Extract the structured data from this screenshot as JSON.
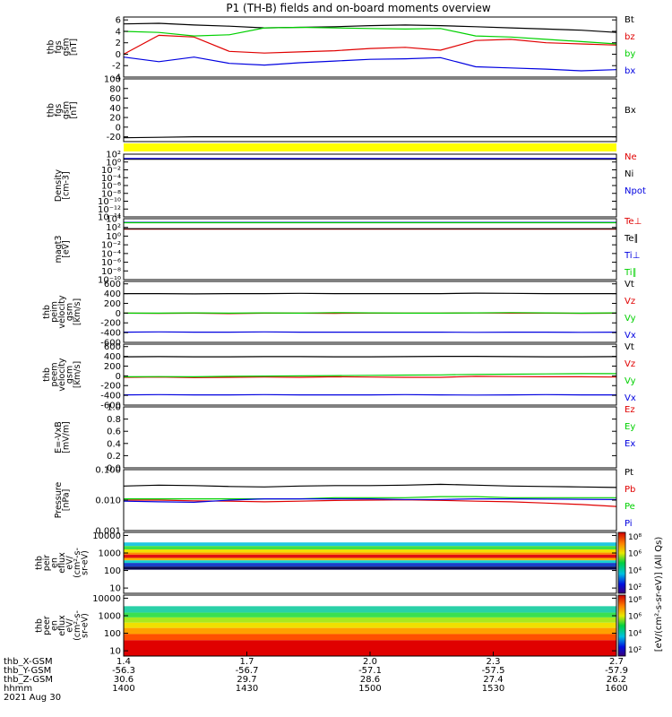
{
  "title": "P1 (TH-B) fields and on-board moments overview",
  "colors": {
    "black": "#000000",
    "red": "#e00000",
    "green": "#00d000",
    "blue": "#0000e0",
    "yellow": "#ffff00",
    "darkred": "#8b0000"
  },
  "chart_data": [
    {
      "type": "line",
      "id": "fgs-bgsm",
      "ylabel": [
        "thb",
        "fgs",
        "gsm",
        "[nT]"
      ],
      "ylim": [
        -4,
        6.5
      ],
      "yticks": [
        -4,
        -2,
        0,
        2,
        4,
        6
      ],
      "series": [
        {
          "name": "Bt",
          "color": "black",
          "values": [
            5.3,
            5.4,
            5.1,
            4.9,
            4.6,
            4.7,
            4.8,
            5.0,
            5.1,
            5.0,
            4.8,
            4.6,
            4.4,
            4.2,
            3.8
          ]
        },
        {
          "name": "bz",
          "color": "red",
          "values": [
            0.0,
            3.3,
            3.0,
            0.5,
            0.2,
            0.4,
            0.6,
            1.0,
            1.2,
            0.7,
            2.4,
            2.6,
            2.0,
            1.8,
            1.6
          ]
        },
        {
          "name": "by",
          "color": "green",
          "values": [
            4.0,
            3.8,
            3.2,
            3.4,
            4.6,
            4.7,
            4.6,
            4.5,
            4.4,
            4.5,
            3.2,
            3.0,
            2.6,
            2.2,
            1.8
          ]
        },
        {
          "name": "bx",
          "color": "blue",
          "values": [
            -0.5,
            -1.3,
            -0.5,
            -1.6,
            -1.9,
            -1.5,
            -1.2,
            -0.9,
            -0.8,
            -0.6,
            -2.2,
            -2.4,
            -2.6,
            -2.9,
            -2.7
          ]
        }
      ]
    },
    {
      "type": "line",
      "id": "fgs-bx",
      "ylabel": [
        "thb",
        "fgs",
        "gsm",
        "[nT]"
      ],
      "ylim": [
        -30,
        100
      ],
      "yticks": [
        -20,
        0,
        20,
        40,
        60,
        80,
        100
      ],
      "series": [
        {
          "name": "Bx",
          "color": "black",
          "values": [
            -22,
            -21,
            -20,
            -20,
            -20,
            -20,
            -20,
            -20,
            -20,
            -20,
            -20,
            -20,
            -20,
            -20,
            -20
          ]
        }
      ]
    },
    {
      "type": "line",
      "id": "density",
      "log": true,
      "ylabel": [
        "Density",
        "[cm-3]"
      ],
      "ylim": [
        1e-14,
        100
      ],
      "yticks": [
        100,
        1,
        0.01,
        0.0001,
        1e-06,
        1e-08,
        1e-10,
        1e-12,
        1e-14
      ],
      "ytick_labels": [
        "10²",
        "10⁰",
        "10⁻²",
        "10⁻⁴",
        "10⁻⁶",
        "10⁻⁸",
        "10⁻¹⁰",
        "10⁻¹²",
        "10⁻¹⁴"
      ],
      "series": [
        {
          "name": "Ne",
          "color": "red",
          "values": [
            6,
            6,
            6,
            6,
            6,
            6,
            6,
            6,
            6,
            6,
            6,
            6,
            6,
            6,
            6
          ]
        },
        {
          "name": "Ni",
          "color": "black",
          "values": [
            5,
            5,
            5,
            5,
            5,
            5,
            5,
            5,
            5,
            5,
            5,
            5,
            5,
            5,
            5
          ]
        },
        {
          "name": "Npot",
          "color": "blue",
          "values": [
            8,
            8,
            8,
            8,
            8,
            8,
            8,
            8,
            8,
            8,
            8,
            8,
            8,
            8,
            8
          ]
        }
      ]
    },
    {
      "type": "line",
      "id": "temperature",
      "log": true,
      "ylabel": [
        "magt3",
        "[eV]"
      ],
      "ylim": [
        1e-10,
        10000
      ],
      "yticks": [
        10000,
        100,
        1,
        0.01,
        0.0001,
        1e-06,
        1e-08,
        1e-10
      ],
      "ytick_labels": [
        "10⁴",
        "10²",
        "10⁰",
        "10⁻²",
        "10⁻⁴",
        "10⁻⁶",
        "10⁻⁸",
        "10⁻¹⁰"
      ],
      "series": [
        {
          "name": "Te⊥",
          "color": "red",
          "values": [
            40,
            40,
            40,
            40,
            40,
            40,
            40,
            40,
            40,
            40,
            40,
            40,
            40,
            40,
            40
          ]
        },
        {
          "name": "Te∥",
          "color": "black",
          "values": [
            50,
            50,
            50,
            50,
            50,
            50,
            50,
            50,
            50,
            50,
            50,
            50,
            50,
            50,
            50
          ]
        },
        {
          "name": "Ti⊥",
          "color": "blue",
          "values": [
            1400,
            1400,
            1400,
            1400,
            1400,
            1400,
            1400,
            1400,
            1400,
            1400,
            1400,
            1400,
            1400,
            1400,
            1400
          ]
        },
        {
          "name": "Ti∥",
          "color": "green",
          "values": [
            1200,
            1200,
            1200,
            1200,
            1200,
            1200,
            1200,
            1200,
            1200,
            1200,
            1200,
            1200,
            1200,
            1200,
            1200
          ]
        }
      ]
    },
    {
      "type": "line",
      "id": "peim-velocity",
      "ylabel": [
        "thb",
        "peim",
        "velocity",
        "gsm",
        "[km/s]"
      ],
      "ylim": [
        -600,
        650
      ],
      "yticks": [
        -600,
        -400,
        -200,
        0,
        200,
        400,
        600
      ],
      "series": [
        {
          "name": "Vt",
          "color": "black",
          "values": [
            400,
            400,
            395,
            400,
            400,
            405,
            400,
            400,
            400,
            400,
            410,
            405,
            400,
            400,
            400
          ]
        },
        {
          "name": "Vz",
          "color": "red",
          "values": [
            0,
            -5,
            0,
            -10,
            0,
            0,
            -5,
            0,
            0,
            0,
            5,
            0,
            0,
            -5,
            0
          ]
        },
        {
          "name": "Vy",
          "color": "green",
          "values": [
            0,
            0,
            5,
            0,
            5,
            0,
            10,
            5,
            0,
            0,
            5,
            10,
            5,
            0,
            5
          ]
        },
        {
          "name": "Vx",
          "color": "blue",
          "values": [
            -390,
            -385,
            -390,
            -390,
            -385,
            -390,
            -390,
            -390,
            -390,
            -390,
            -395,
            -390,
            -390,
            -395,
            -390
          ]
        }
      ]
    },
    {
      "type": "line",
      "id": "peem-velocity",
      "ylabel": [
        "thb",
        "peem",
        "velocity",
        "gsm",
        "[km/s]"
      ],
      "ylim": [
        -600,
        650
      ],
      "yticks": [
        -600,
        -400,
        -200,
        0,
        200,
        400,
        600
      ],
      "series": [
        {
          "name": "Vt",
          "color": "black",
          "values": [
            390,
            395,
            390,
            390,
            395,
            395,
            390,
            390,
            395,
            400,
            400,
            395,
            390,
            390,
            395
          ]
        },
        {
          "name": "Vz",
          "color": "red",
          "values": [
            -30,
            -25,
            -35,
            -30,
            -25,
            -30,
            -20,
            -25,
            -30,
            -30,
            -10,
            -15,
            -20,
            -20,
            -25
          ]
        },
        {
          "name": "Vy",
          "color": "green",
          "values": [
            -20,
            -15,
            -20,
            -10,
            -5,
            0,
            5,
            10,
            15,
            20,
            30,
            35,
            40,
            45,
            45
          ]
        },
        {
          "name": "Vx",
          "color": "blue",
          "values": [
            -390,
            -385,
            -390,
            -390,
            -385,
            -390,
            -390,
            -390,
            -385,
            -390,
            -395,
            -390,
            -385,
            -390,
            -390
          ]
        }
      ]
    },
    {
      "type": "line",
      "id": "efield",
      "ylabel": [
        "E=-VxB",
        "[mV/m]"
      ],
      "ylim": [
        0,
        1.0
      ],
      "yticks": [
        0,
        0.2,
        0.4,
        0.6,
        0.8,
        1.0
      ],
      "ytick_labels": [
        "0.0",
        "0.2",
        "0.4",
        "0.6",
        "0.8",
        "1.0"
      ],
      "series": [
        {
          "name": "Ez",
          "color": "red",
          "values": []
        },
        {
          "name": "Ey",
          "color": "green",
          "values": []
        },
        {
          "name": "Ex",
          "color": "blue",
          "values": []
        }
      ]
    },
    {
      "type": "line",
      "id": "pressure",
      "log": true,
      "ylabel": [
        "Pressure",
        "[nPa]"
      ],
      "ylim": [
        0.001,
        0.1
      ],
      "yticks": [
        0.1,
        0.01,
        0.001
      ],
      "ytick_labels": [
        "0.100",
        "0.010",
        "0.001"
      ],
      "series": [
        {
          "name": "Pt",
          "color": "black",
          "values": [
            0.029,
            0.031,
            0.03,
            0.028,
            0.027,
            0.029,
            0.03,
            0.03,
            0.031,
            0.033,
            0.031,
            0.029,
            0.028,
            0.027,
            0.026
          ]
        },
        {
          "name": "Pb",
          "color": "red",
          "values": [
            0.01,
            0.01,
            0.0095,
            0.0092,
            0.0088,
            0.0092,
            0.0097,
            0.01,
            0.0102,
            0.0098,
            0.0092,
            0.0088,
            0.008,
            0.0072,
            0.0062
          ]
        },
        {
          "name": "Pe",
          "color": "green",
          "values": [
            0.011,
            0.011,
            0.011,
            0.011,
            0.011,
            0.011,
            0.012,
            0.012,
            0.012,
            0.013,
            0.013,
            0.012,
            0.012,
            0.012,
            0.012
          ]
        },
        {
          "name": "Pi",
          "color": "blue",
          "values": [
            0.0092,
            0.0088,
            0.0085,
            0.01,
            0.011,
            0.011,
            0.011,
            0.011,
            0.0105,
            0.0105,
            0.011,
            0.011,
            0.0108,
            0.0106,
            0.0104
          ]
        }
      ]
    },
    {
      "type": "heatmap",
      "id": "peir",
      "ylabel": [
        "thb",
        "peir",
        "en",
        "eflux",
        "eV/",
        "(cm²-s-",
        "sr-eV)"
      ],
      "ylim": [
        5,
        15000
      ],
      "yticks": [
        10,
        100,
        1000,
        10000
      ],
      "ytick_labels": [
        "10",
        "100",
        "1000",
        "10000"
      ],
      "bands": [
        {
          "from": 4000,
          "to": 15000,
          "color": "#ffffff"
        },
        {
          "from": 2500,
          "to": 4000,
          "color": "#21c8e0"
        },
        {
          "from": 1600,
          "to": 2500,
          "color": "#40e048"
        },
        {
          "from": 1050,
          "to": 1600,
          "color": "#f0e000"
        },
        {
          "from": 800,
          "to": 1050,
          "color": "#ff8a00"
        },
        {
          "from": 520,
          "to": 800,
          "color": "#e01010"
        },
        {
          "from": 380,
          "to": 520,
          "color": "#ffb000"
        },
        {
          "from": 270,
          "to": 380,
          "color": "#18d0d0"
        },
        {
          "from": 165,
          "to": 270,
          "color": "#1840c8"
        },
        {
          "from": 110,
          "to": 165,
          "color": "#0a0a50"
        },
        {
          "from": 5,
          "to": 110,
          "color": "#ffffff"
        }
      ]
    },
    {
      "type": "heatmap",
      "id": "peer",
      "ylabel": [
        "thb",
        "peer",
        "en",
        "eflux",
        "eV/",
        "(cm²-s-",
        "sr-eV)"
      ],
      "ylim": [
        5,
        15000
      ],
      "yticks": [
        10,
        100,
        1000,
        10000
      ],
      "ytick_labels": [
        "10",
        "100",
        "1000",
        "10000"
      ],
      "bands": [
        {
          "from": 3500,
          "to": 15000,
          "color": "#ffffff"
        },
        {
          "from": 1500,
          "to": 3500,
          "color": "#2ad0a8"
        },
        {
          "from": 800,
          "to": 1500,
          "color": "#3ae050"
        },
        {
          "from": 400,
          "to": 800,
          "color": "#a8e820"
        },
        {
          "from": 200,
          "to": 400,
          "color": "#f0e000"
        },
        {
          "from": 90,
          "to": 200,
          "color": "#ffa000"
        },
        {
          "from": 40,
          "to": 90,
          "color": "#ff5000"
        },
        {
          "from": 5,
          "to": 40,
          "color": "#e00000"
        }
      ]
    }
  ],
  "colorbar": {
    "label": "[eV/(cm²-s-sr-eV)] (All Qs)",
    "upper_ticks": [
      "10⁸",
      "10⁶",
      "10⁴",
      "10²"
    ],
    "lower_ticks": [
      "10⁸",
      "10⁶",
      "10⁴",
      "10²"
    ]
  },
  "x_axis": {
    "row_labels": [
      "thb_X-GSM",
      "thb_Y-GSM",
      "thb_Z-GSM",
      "hhmm",
      "2021 Aug 30"
    ],
    "columns": [
      {
        "values": [
          "1.4",
          "-56.3",
          "30.6",
          "1400"
        ]
      },
      {
        "values": [
          "1.7",
          "-56.7",
          "29.7",
          "1430"
        ]
      },
      {
        "values": [
          "2.0",
          "-57.1",
          "28.6",
          "1500"
        ]
      },
      {
        "values": [
          "2.3",
          "-57.5",
          "27.4",
          "1530"
        ]
      },
      {
        "values": [
          "2.7",
          "-57.9",
          "26.2",
          "1600"
        ]
      }
    ]
  }
}
